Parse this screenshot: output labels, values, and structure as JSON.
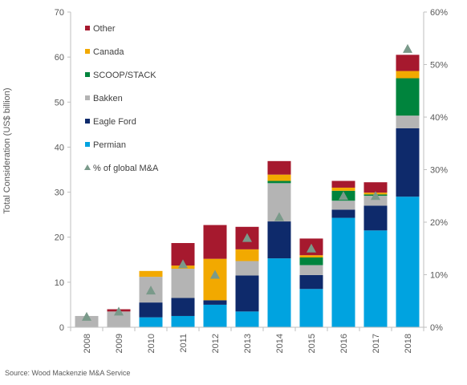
{
  "source_note": "Source: Wood Mackenzie M&A Service",
  "chart_data": {
    "type": "bar",
    "stacked": true,
    "categories": [
      "2008",
      "2009",
      "2010",
      "2011",
      "2012",
      "2013",
      "2014",
      "2015",
      "2016",
      "2017",
      "2018"
    ],
    "ylabel": "Total Consideration (US$ billion)",
    "ylim": [
      0,
      70
    ],
    "yticks": [
      0,
      10,
      20,
      30,
      40,
      50,
      60,
      70
    ],
    "y2lim": [
      0,
      60
    ],
    "y2ticks": [
      "0%",
      "10%",
      "20%",
      "30%",
      "40%",
      "50%",
      "60%"
    ],
    "y2tick_values": [
      0,
      10,
      20,
      30,
      40,
      50,
      60
    ],
    "legend_position": "top-left",
    "series": [
      {
        "name": "Permian",
        "color": "#00a3e0",
        "values": [
          0,
          0,
          2.2,
          2.5,
          5.0,
          3.5,
          15.3,
          8.5,
          24.3,
          21.5,
          29.0
        ]
      },
      {
        "name": "Eagle Ford",
        "color": "#0e2a6b",
        "values": [
          0,
          0,
          3.3,
          4.0,
          1.0,
          8.0,
          8.2,
          3.1,
          1.8,
          5.5,
          15.2
        ]
      },
      {
        "name": "Bakken",
        "color": "#b4b4b4",
        "values": [
          2.5,
          3.5,
          5.7,
          6.5,
          0,
          3.2,
          8.5,
          2.2,
          2.0,
          2.2,
          2.8
        ]
      },
      {
        "name": "SCOOP/STACK",
        "color": "#00843d",
        "values": [
          0,
          0,
          0,
          0,
          0,
          0,
          0.5,
          1.7,
          2.2,
          0.3,
          8.3
        ]
      },
      {
        "name": "Canada",
        "color": "#f2a900",
        "values": [
          0,
          0,
          1.3,
          0.7,
          9.2,
          2.6,
          1.4,
          0.5,
          0.7,
          0.4,
          1.6
        ]
      },
      {
        "name": "Other",
        "color": "#a6192e",
        "values": [
          0,
          0.5,
          0,
          5.0,
          7.5,
          5.0,
          3.0,
          3.7,
          1.5,
          2.3,
          3.6
        ]
      }
    ],
    "markers": {
      "name": "% of global M&A",
      "color": "#7a9a8a",
      "values": [
        2,
        3,
        7,
        12,
        10,
        17,
        21,
        15,
        25,
        25,
        53
      ]
    },
    "grid": false
  }
}
